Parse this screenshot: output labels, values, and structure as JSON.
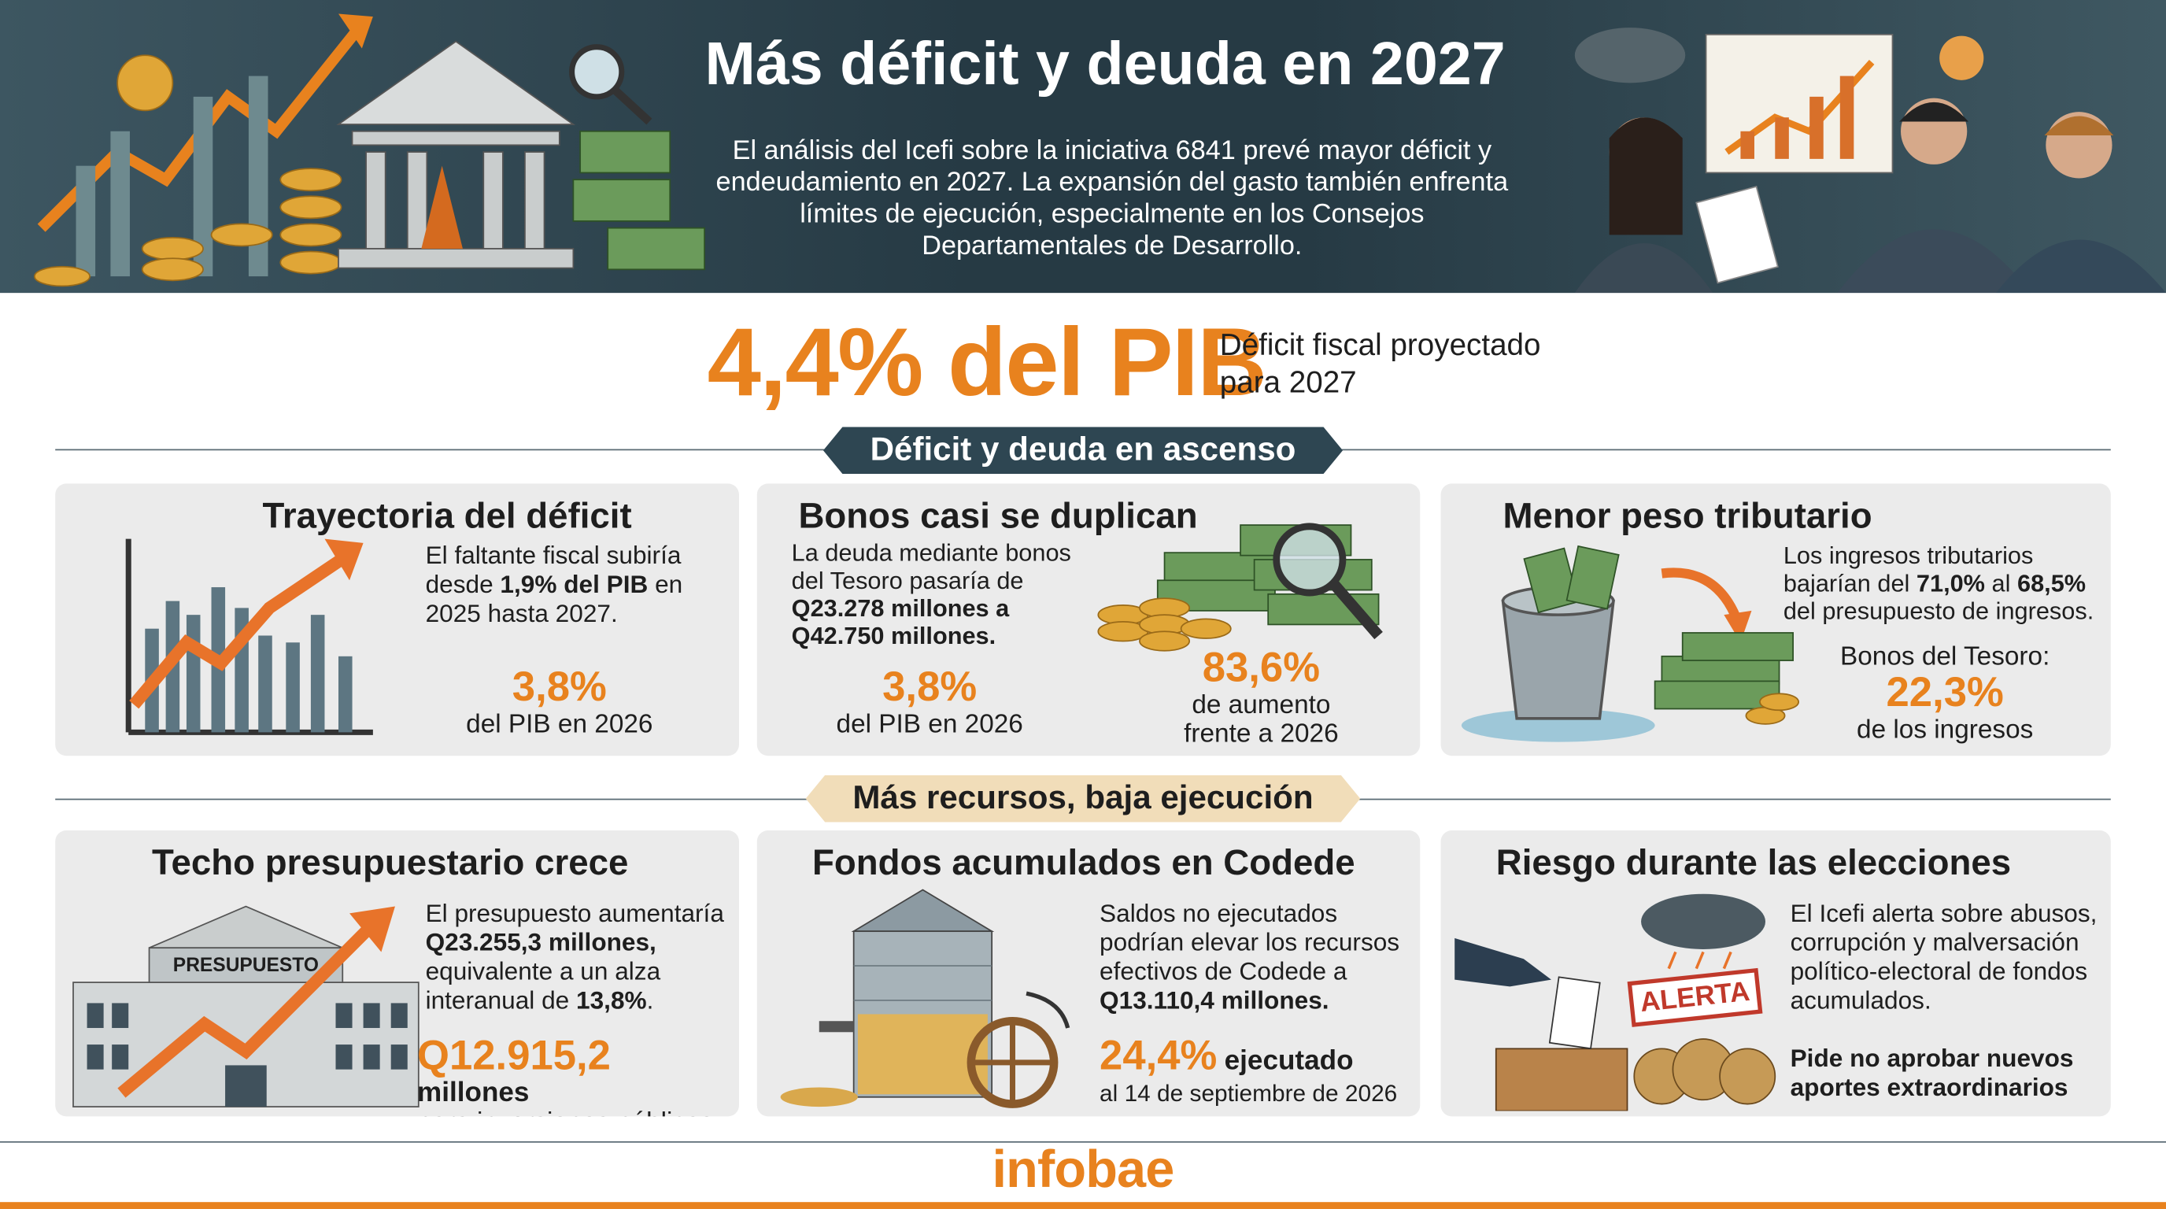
{
  "header": {
    "title": "Más déficit y deuda en 2027",
    "summary": "El análisis del Icefi sobre la iniciativa 6841 prevé mayor déficit y endeudamiento en 2027. La expansión del gasto también enfrenta límites de ejecución, especialmente en los Consejos Departamentales de Desarrollo."
  },
  "headline": {
    "value": "4,4% del PIB",
    "caption": "Déficit fiscal proyectado para 2027"
  },
  "sections": [
    {
      "title": "Déficit y deuda en ascenso",
      "cards": [
        {
          "title": "Trayectoria del déficit",
          "text": [
            "El faltante fiscal subiría desde ",
            "1,9% del PIB",
            " en 2025 hasta 2027."
          ],
          "stat": "3,8%",
          "stat_caption": "del PIB en 2026"
        },
        {
          "title": "Bonos casi se duplican",
          "text": [
            "La deuda mediante bonos del Tesoro pasaría de ",
            "Q23.278 millones a Q42.750 millones."
          ],
          "stat": "3,8%",
          "stat_caption": "del PIB en 2026",
          "stat2": "83,6%",
          "stat2_caption": "de aumento frente a 2026"
        },
        {
          "title": "Menor peso tributario",
          "text": [
            "Los ingresos tributarios bajarían del ",
            "71,0%",
            " al ",
            "68,5%",
            " del presupuesto de ingresos."
          ],
          "stat_heading": "Bonos del Tesoro:",
          "stat": "22,3%",
          "stat_caption": "de los ingresos"
        }
      ]
    },
    {
      "title": "Más recursos, baja ejecución",
      "cards": [
        {
          "title": "Techo presupuestario crece",
          "label": "PRESUPUESTO",
          "text": [
            "El presupuesto aumentaría ",
            "Q23.255,3 millones,",
            " equivalente a un alza interanual de ",
            "13,8%",
            "."
          ],
          "stat": "Q12.915,2",
          "stat_suffix": "millones",
          "stat_caption": "para inversiones públicas"
        },
        {
          "title": "Fondos acumulados en Codede",
          "text": [
            "Saldos no ejecutados podrían elevar los recursos efectivos de Codede a ",
            "Q13.110,4 millones."
          ],
          "stat": "24,4%",
          "stat_suffix": "ejecutado",
          "stat_caption": "al 14 de septiembre de 2026"
        },
        {
          "title": "Riesgo durante las elecciones",
          "label": "ALERTA",
          "text": [
            "El Icefi alerta sobre abusos, corrupción y malversación político-electoral de fondos acumulados."
          ],
          "note": "Pide no aprobar nuevos aportes extraordinarios"
        }
      ]
    }
  ],
  "footer": {
    "brand": "infobae"
  }
}
